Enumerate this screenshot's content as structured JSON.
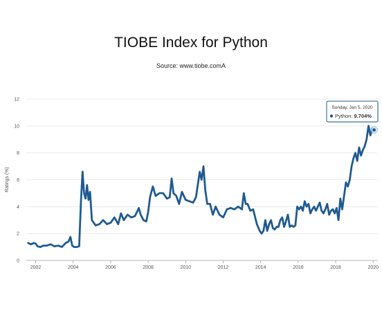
{
  "chart_data": {
    "type": "line",
    "title": "TIOBE Index for Python",
    "subtitle": "Source: www.tiobe.comA",
    "xlabel": "",
    "ylabel": "Ratings (%)",
    "xlim": [
      2001.5,
      2020.25
    ],
    "ylim": [
      0,
      12
    ],
    "y_ticks": [
      "0",
      "2",
      "4",
      "6",
      "8",
      "10",
      "12"
    ],
    "x_ticks": [
      "2002",
      "2004",
      "2006",
      "2008",
      "2010",
      "2012",
      "2014",
      "2016",
      "2018",
      "2020"
    ],
    "grid": "horizontal",
    "line_color": "#1f5a91",
    "series": [
      {
        "name": "Python",
        "x": [
          2001.6,
          2001.75,
          2001.9,
          2002.0,
          2002.1,
          2002.25,
          2002.4,
          2002.6,
          2002.8,
          2003.0,
          2003.2,
          2003.4,
          2003.6,
          2003.75,
          2003.85,
          2003.95,
          2004.05,
          2004.2,
          2004.32,
          2004.42,
          2004.5,
          2004.58,
          2004.66,
          2004.74,
          2004.82,
          2004.9,
          2005.0,
          2005.2,
          2005.4,
          2005.6,
          2005.8,
          2006.0,
          2006.2,
          2006.4,
          2006.55,
          2006.7,
          2006.9,
          2007.1,
          2007.3,
          2007.5,
          2007.6,
          2007.75,
          2007.9,
          2008.0,
          2008.1,
          2008.25,
          2008.4,
          2008.6,
          2008.8,
          2009.0,
          2009.15,
          2009.25,
          2009.35,
          2009.5,
          2009.65,
          2009.8,
          2010.0,
          2010.2,
          2010.4,
          2010.55,
          2010.75,
          2010.85,
          2010.95,
          2011.05,
          2011.15,
          2011.3,
          2011.45,
          2011.6,
          2011.8,
          2012.0,
          2012.2,
          2012.4,
          2012.6,
          2012.8,
          2013.0,
          2013.1,
          2013.2,
          2013.3,
          2013.45,
          2013.6,
          2013.8,
          2013.95,
          2014.05,
          2014.15,
          2014.25,
          2014.35,
          2014.45,
          2014.55,
          2014.65,
          2014.75,
          2014.85,
          2014.95,
          2015.05,
          2015.15,
          2015.25,
          2015.35,
          2015.45,
          2015.55,
          2015.65,
          2015.75,
          2015.85,
          2015.95,
          2016.05,
          2016.15,
          2016.25,
          2016.35,
          2016.45,
          2016.55,
          2016.65,
          2016.75,
          2016.85,
          2016.95,
          2017.05,
          2017.15,
          2017.25,
          2017.35,
          2017.45,
          2017.55,
          2017.65,
          2017.75,
          2017.85,
          2017.95,
          2018.05,
          2018.15,
          2018.25,
          2018.35,
          2018.45,
          2018.55,
          2018.65,
          2018.75,
          2018.85,
          2018.95,
          2019.05,
          2019.15,
          2019.25,
          2019.35,
          2019.45,
          2019.55,
          2019.65,
          2019.75,
          2019.85,
          2019.95,
          2020.05
        ],
        "y": [
          1.3,
          1.2,
          1.3,
          1.25,
          1.05,
          1.0,
          1.1,
          1.1,
          1.2,
          1.05,
          1.1,
          1.0,
          1.3,
          1.4,
          1.75,
          1.1,
          1.0,
          1.0,
          1.05,
          4.5,
          6.6,
          5.0,
          4.6,
          5.6,
          4.5,
          5.1,
          3.0,
          2.6,
          2.7,
          3.0,
          2.7,
          2.8,
          3.2,
          2.7,
          3.5,
          3.0,
          3.4,
          3.2,
          3.3,
          3.9,
          3.4,
          3.0,
          2.9,
          3.6,
          4.7,
          5.5,
          4.8,
          5.0,
          5.0,
          4.6,
          4.7,
          6.1,
          5.0,
          4.8,
          4.2,
          5.1,
          4.5,
          4.4,
          4.3,
          4.7,
          6.6,
          6.0,
          7.0,
          5.2,
          4.2,
          4.2,
          3.4,
          4.0,
          3.4,
          3.2,
          3.8,
          3.9,
          3.8,
          4.0,
          3.8,
          5.0,
          4.2,
          4.2,
          3.7,
          3.8,
          2.7,
          2.2,
          2.0,
          2.2,
          3.0,
          2.2,
          2.7,
          3.0,
          2.4,
          2.3,
          2.5,
          2.5,
          3.0,
          3.2,
          2.5,
          2.9,
          3.4,
          2.5,
          2.6,
          2.5,
          2.6,
          4.0,
          3.8,
          4.0,
          3.7,
          4.4,
          4.0,
          4.2,
          3.5,
          3.8,
          4.0,
          3.7,
          4.0,
          4.3,
          3.7,
          3.5,
          3.8,
          4.2,
          3.4,
          3.7,
          3.8,
          3.5,
          3.9,
          3.0,
          4.6,
          3.8,
          4.8,
          5.8,
          5.5,
          6.0,
          7.0,
          7.6,
          8.0,
          7.4,
          8.4,
          7.8,
          8.2,
          8.5,
          9.0,
          10.0,
          9.3,
          9.8,
          9.7
        ]
      }
    ],
    "tooltip": {
      "date": "Sunday, Jan 5, 2020",
      "series": "Python",
      "value": "9.704%",
      "x": 2020.05,
      "y": 9.704
    }
  }
}
